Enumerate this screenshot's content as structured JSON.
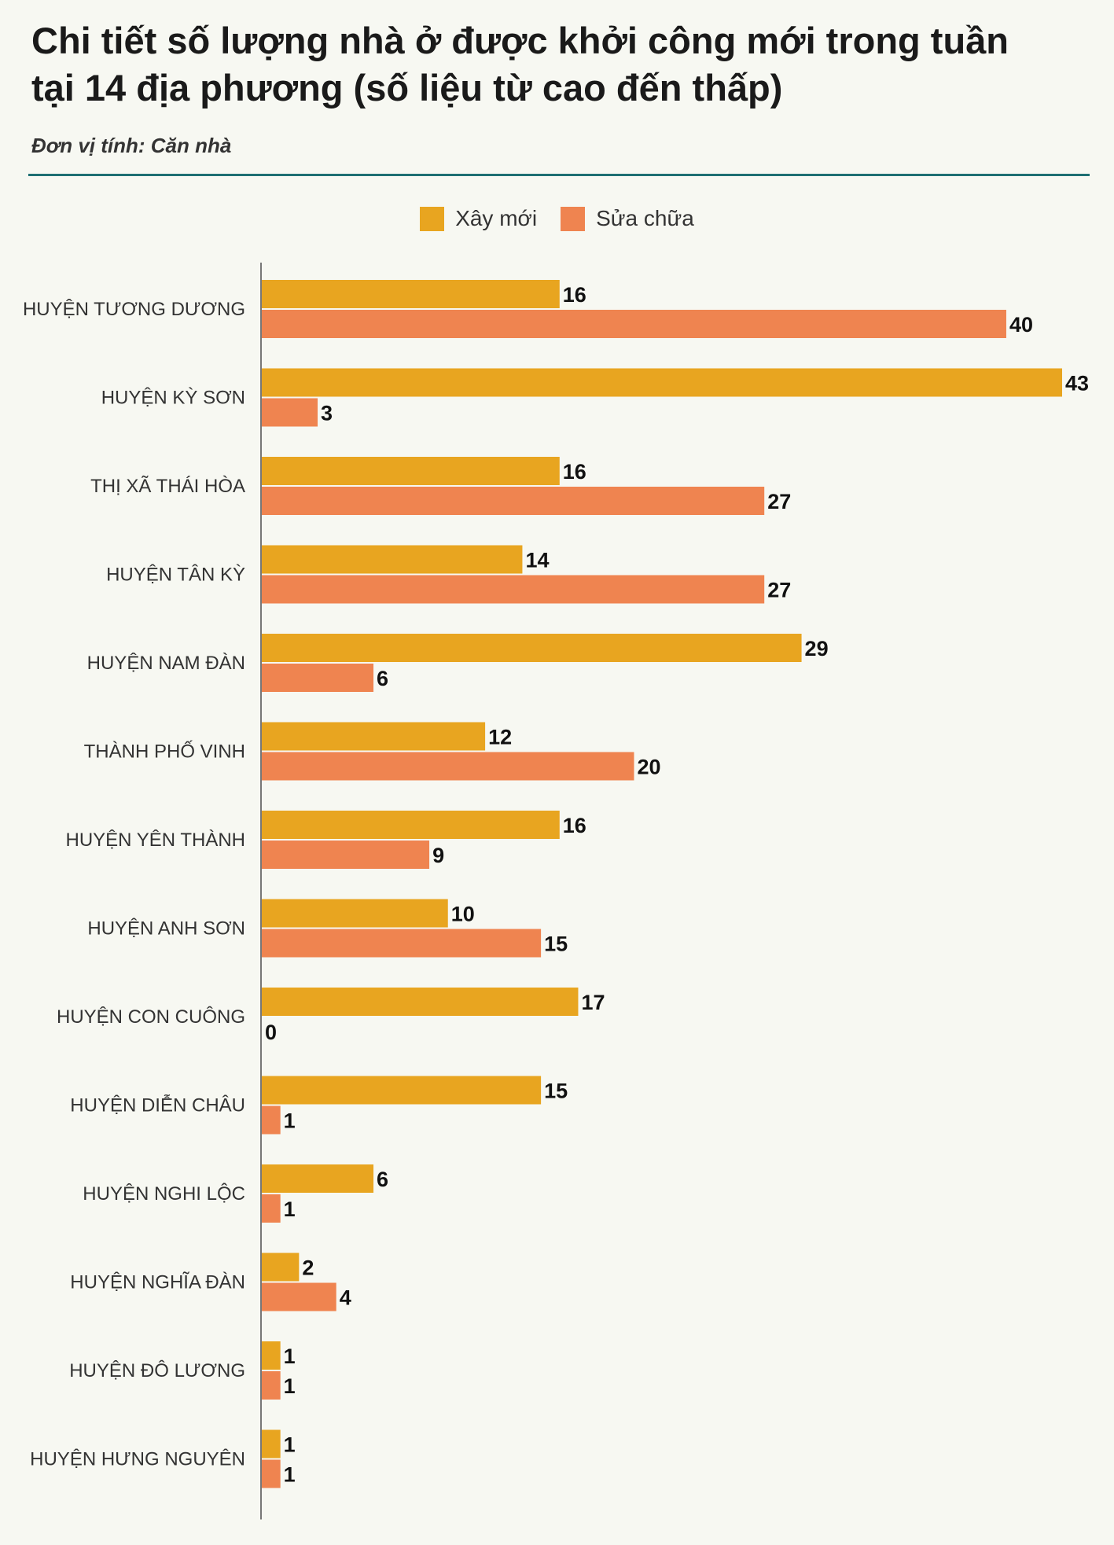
{
  "header": {
    "title_line1": "Chi tiết số lượng nhà ở được khởi công mới trong tuần",
    "title_line2": "tại 14 địa phương (số liệu từ cao đến thấp)",
    "unit": "Đơn vị tính: Căn nhà"
  },
  "colors": {
    "new": "#e8a520",
    "repair": "#ef8450",
    "rule": "#1e6f73",
    "axis": "#777777"
  },
  "chart_data": {
    "type": "bar",
    "orientation": "horizontal",
    "title": "Chi tiết số lượng nhà ở được khởi công mới trong tuần tại 14 địa phương (số liệu từ cao đến thấp)",
    "subtitle": "Đơn vị tính: Căn nhà",
    "legend_position": "top-center",
    "grid": false,
    "xlim": [
      0,
      43
    ],
    "categories": [
      "HUYỆN TƯƠNG DƯƠNG",
      "HUYỆN KỲ SƠN",
      "THỊ XÃ THÁI HÒA",
      "HUYỆN TÂN KỲ",
      "HUYỆN NAM ĐÀN",
      "THÀNH PHỐ VINH",
      "HUYỆN YÊN THÀNH",
      "HUYỆN ANH SƠN",
      "HUYỆN CON CUÔNG",
      "HUYỆN DIỄN CHÂU",
      "HUYỆN NGHI LỘC",
      "HUYỆN NGHĨA ĐÀN",
      "HUYỆN ĐÔ LƯƠNG",
      "HUYỆN HƯNG NGUYÊN"
    ],
    "series": [
      {
        "name": "Xây mới",
        "values": [
          16,
          43,
          16,
          14,
          29,
          12,
          16,
          10,
          17,
          15,
          6,
          2,
          1,
          1
        ]
      },
      {
        "name": "Sửa chữa",
        "values": [
          40,
          3,
          27,
          27,
          6,
          20,
          9,
          15,
          0,
          1,
          1,
          4,
          1,
          1
        ]
      }
    ]
  }
}
